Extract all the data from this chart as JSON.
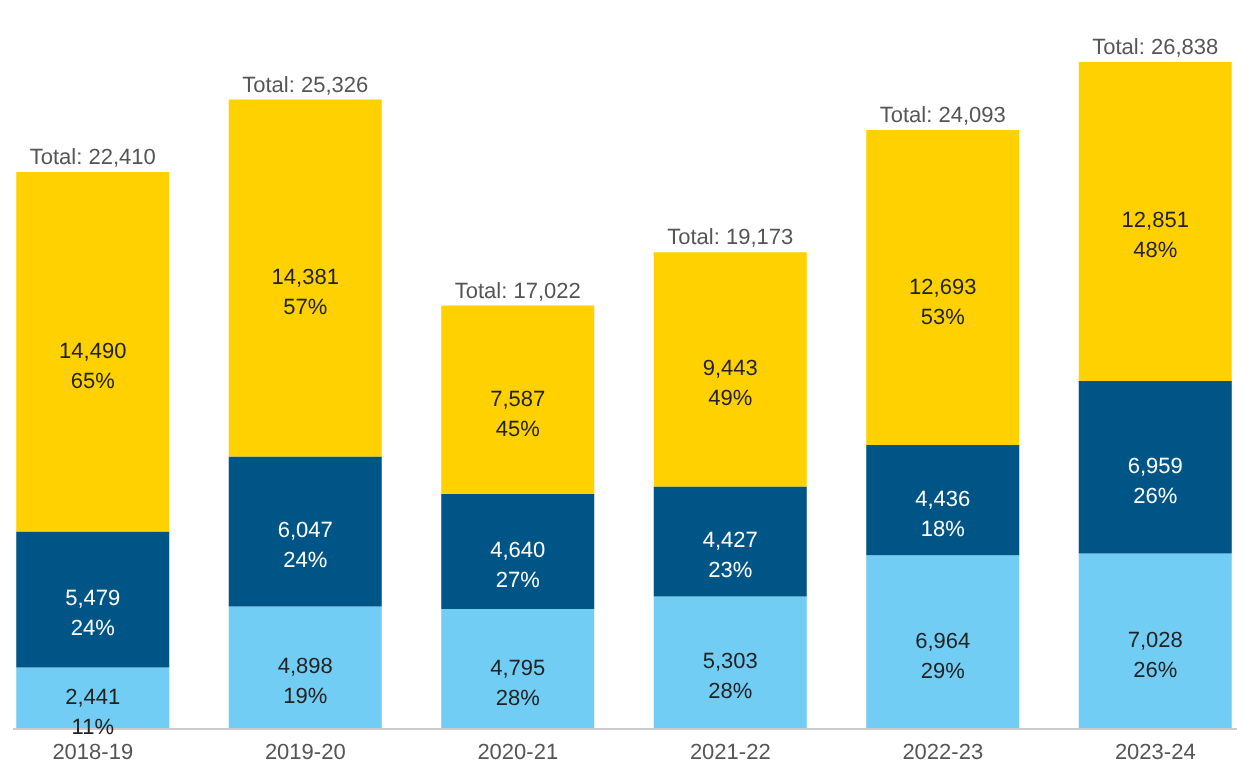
{
  "chart_data": {
    "type": "bar",
    "stacked": true,
    "categories": [
      "2018-19",
      "2019-20",
      "2020-21",
      "2021-22",
      "2022-23",
      "2023-24"
    ],
    "series": [
      {
        "color": "#72cdf4",
        "values": [
          2441,
          4898,
          4795,
          5303,
          6964,
          7028
        ],
        "value_labels": [
          "2,441\n11%",
          "4,898\n19%",
          "4,795\n28%",
          "5,303\n28%",
          "6,964\n29%",
          "7,028\n26%"
        ]
      },
      {
        "color": "#005587",
        "values": [
          5479,
          6047,
          4640,
          4427,
          4436,
          6959
        ],
        "value_labels": [
          "5,479\n24%",
          "6,047\n24%",
          "4,640\n27%",
          "4,427\n23%",
          "4,436\n18%",
          "6,959\n26%"
        ]
      },
      {
        "color": "#ffd100",
        "values": [
          14490,
          14381,
          7587,
          9443,
          12693,
          12851
        ],
        "value_labels": [
          "14,490\n65%",
          "14,381\n57%",
          "7,587\n45%",
          "9,443\n49%",
          "12,693\n53%",
          "12,851\n48%"
        ]
      }
    ],
    "totals": [
      "Total: 22,410",
      "Total: 25,326",
      "Total: 17,022",
      "Total: 19,173",
      "Total: 24,093",
      "Total: 26,838"
    ]
  }
}
